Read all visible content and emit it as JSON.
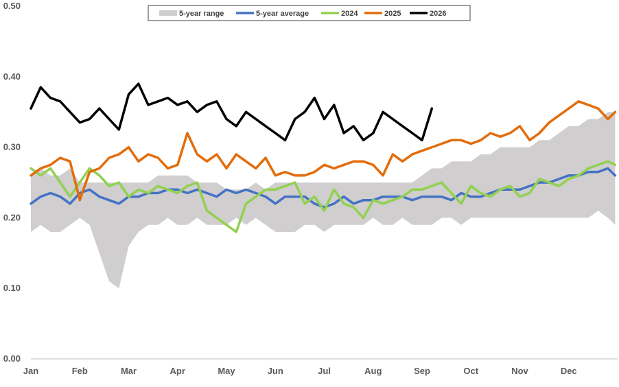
{
  "chart_data": {
    "type": "line",
    "title": "",
    "xlabel": "",
    "ylabel": "",
    "ylim": [
      0,
      0.5
    ],
    "y_ticks": [
      "0.00",
      "0.10",
      "0.20",
      "0.30",
      "0.40",
      "0.50"
    ],
    "x_categories": [
      "Jan",
      "Feb",
      "Mar",
      "Apr",
      "May",
      "Jun",
      "Jul",
      "Aug",
      "Sep",
      "Oct",
      "Nov",
      "Dec"
    ],
    "grid": false,
    "legend_position": "top",
    "legend": [
      {
        "label": "5-year range",
        "color": "#d0cece",
        "kind": "band"
      },
      {
        "label": "5-year average",
        "color": "#4472c4",
        "kind": "line"
      },
      {
        "label": "2024",
        "color": "#92d050",
        "kind": "line"
      },
      {
        "label": "2025",
        "color": "#e36c0a",
        "kind": "line"
      },
      {
        "label": "2026",
        "color": "#000000",
        "kind": "line"
      }
    ],
    "range_band": {
      "name": "5-year range",
      "x": [
        0,
        0.2,
        0.4,
        0.6,
        0.8,
        1.0,
        1.2,
        1.4,
        1.6,
        1.8,
        2.0,
        2.2,
        2.4,
        2.6,
        2.8,
        3.0,
        3.2,
        3.4,
        3.6,
        3.8,
        4.0,
        4.2,
        4.4,
        4.6,
        4.8,
        5.0,
        5.2,
        5.4,
        5.6,
        5.8,
        6.0,
        6.2,
        6.4,
        6.6,
        6.8,
        7.0,
        7.2,
        7.4,
        7.6,
        7.8,
        8.0,
        8.2,
        8.4,
        8.6,
        8.8,
        9.0,
        9.2,
        9.4,
        9.6,
        9.8,
        10.0,
        10.2,
        10.4,
        10.6,
        10.8,
        11.0,
        11.2,
        11.4,
        11.6,
        11.8,
        11.95
      ],
      "low": [
        0.18,
        0.19,
        0.18,
        0.18,
        0.19,
        0.2,
        0.19,
        0.15,
        0.11,
        0.1,
        0.16,
        0.18,
        0.19,
        0.19,
        0.2,
        0.19,
        0.19,
        0.2,
        0.19,
        0.19,
        0.19,
        0.2,
        0.19,
        0.2,
        0.19,
        0.18,
        0.18,
        0.18,
        0.19,
        0.19,
        0.18,
        0.19,
        0.19,
        0.19,
        0.19,
        0.2,
        0.19,
        0.19,
        0.2,
        0.19,
        0.19,
        0.19,
        0.2,
        0.2,
        0.19,
        0.2,
        0.2,
        0.2,
        0.2,
        0.2,
        0.2,
        0.2,
        0.2,
        0.2,
        0.2,
        0.2,
        0.2,
        0.2,
        0.21,
        0.2,
        0.19
      ],
      "high": [
        0.26,
        0.27,
        0.26,
        0.26,
        0.27,
        0.25,
        0.25,
        0.25,
        0.25,
        0.25,
        0.25,
        0.25,
        0.25,
        0.26,
        0.26,
        0.26,
        0.26,
        0.25,
        0.25,
        0.25,
        0.24,
        0.24,
        0.24,
        0.25,
        0.24,
        0.25,
        0.25,
        0.25,
        0.25,
        0.25,
        0.25,
        0.25,
        0.25,
        0.25,
        0.25,
        0.25,
        0.25,
        0.25,
        0.25,
        0.25,
        0.26,
        0.27,
        0.27,
        0.28,
        0.28,
        0.28,
        0.29,
        0.29,
        0.3,
        0.3,
        0.3,
        0.3,
        0.31,
        0.31,
        0.32,
        0.33,
        0.33,
        0.34,
        0.34,
        0.35,
        0.35
      ]
    },
    "series": [
      {
        "name": "5-year average",
        "color": "#4472c4",
        "x": [
          0,
          0.2,
          0.4,
          0.6,
          0.8,
          1.0,
          1.2,
          1.4,
          1.6,
          1.8,
          2.0,
          2.2,
          2.4,
          2.6,
          2.8,
          3.0,
          3.2,
          3.4,
          3.6,
          3.8,
          4.0,
          4.2,
          4.4,
          4.6,
          4.8,
          5.0,
          5.2,
          5.4,
          5.6,
          5.8,
          6.0,
          6.2,
          6.4,
          6.6,
          6.8,
          7.0,
          7.2,
          7.4,
          7.6,
          7.8,
          8.0,
          8.2,
          8.4,
          8.6,
          8.8,
          9.0,
          9.2,
          9.4,
          9.6,
          9.8,
          10.0,
          10.2,
          10.4,
          10.6,
          10.8,
          11.0,
          11.2,
          11.4,
          11.6,
          11.8,
          11.95
        ],
        "values": [
          0.22,
          0.23,
          0.235,
          0.23,
          0.22,
          0.235,
          0.24,
          0.23,
          0.225,
          0.22,
          0.23,
          0.23,
          0.235,
          0.235,
          0.24,
          0.24,
          0.235,
          0.24,
          0.235,
          0.23,
          0.24,
          0.235,
          0.24,
          0.235,
          0.23,
          0.22,
          0.23,
          0.23,
          0.23,
          0.22,
          0.215,
          0.22,
          0.23,
          0.22,
          0.225,
          0.225,
          0.23,
          0.23,
          0.23,
          0.225,
          0.23,
          0.23,
          0.23,
          0.225,
          0.235,
          0.23,
          0.23,
          0.235,
          0.24,
          0.24,
          0.24,
          0.245,
          0.25,
          0.25,
          0.255,
          0.26,
          0.26,
          0.265,
          0.265,
          0.27,
          0.26
        ]
      },
      {
        "name": "2024",
        "color": "#92d050",
        "x": [
          0,
          0.2,
          0.4,
          0.6,
          0.8,
          1.0,
          1.2,
          1.4,
          1.6,
          1.8,
          2.0,
          2.2,
          2.4,
          2.6,
          2.8,
          3.0,
          3.2,
          3.4,
          3.6,
          3.8,
          4.0,
          4.2,
          4.4,
          4.6,
          4.8,
          5.0,
          5.2,
          5.4,
          5.6,
          5.8,
          6.0,
          6.2,
          6.4,
          6.6,
          6.8,
          7.0,
          7.2,
          7.4,
          7.6,
          7.8,
          8.0,
          8.2,
          8.4,
          8.6,
          8.8,
          9.0,
          9.2,
          9.4,
          9.6,
          9.8,
          10.0,
          10.2,
          10.4,
          10.6,
          10.8,
          11.0,
          11.2,
          11.4,
          11.6,
          11.8,
          11.95
        ],
        "values": [
          0.27,
          0.26,
          0.27,
          0.25,
          0.23,
          0.25,
          0.27,
          0.26,
          0.245,
          0.25,
          0.23,
          0.24,
          0.235,
          0.245,
          0.24,
          0.235,
          0.245,
          0.25,
          0.21,
          0.2,
          0.19,
          0.18,
          0.22,
          0.23,
          0.24,
          0.24,
          0.245,
          0.25,
          0.22,
          0.23,
          0.21,
          0.24,
          0.22,
          0.215,
          0.2,
          0.225,
          0.22,
          0.225,
          0.23,
          0.24,
          0.24,
          0.245,
          0.25,
          0.235,
          0.22,
          0.245,
          0.235,
          0.23,
          0.24,
          0.245,
          0.23,
          0.235,
          0.255,
          0.25,
          0.245,
          0.255,
          0.26,
          0.27,
          0.275,
          0.28,
          0.275
        ]
      },
      {
        "name": "2025",
        "color": "#e36c0a",
        "x": [
          0,
          0.2,
          0.4,
          0.6,
          0.8,
          1.0,
          1.2,
          1.4,
          1.6,
          1.8,
          2.0,
          2.2,
          2.4,
          2.6,
          2.8,
          3.0,
          3.2,
          3.4,
          3.6,
          3.8,
          4.0,
          4.2,
          4.4,
          4.6,
          4.8,
          5.0,
          5.2,
          5.4,
          5.6,
          5.8,
          6.0,
          6.2,
          6.4,
          6.6,
          6.8,
          7.0,
          7.2,
          7.4,
          7.6,
          7.8,
          8.0,
          8.2,
          8.4,
          8.6,
          8.8,
          9.0,
          9.2,
          9.4,
          9.6,
          9.8,
          10.0,
          10.2,
          10.4,
          10.6,
          10.8,
          11.0,
          11.2,
          11.4,
          11.6,
          11.8,
          11.95
        ],
        "values": [
          0.26,
          0.27,
          0.275,
          0.285,
          0.28,
          0.225,
          0.265,
          0.27,
          0.285,
          0.29,
          0.3,
          0.28,
          0.29,
          0.285,
          0.27,
          0.275,
          0.32,
          0.29,
          0.28,
          0.29,
          0.27,
          0.29,
          0.28,
          0.27,
          0.285,
          0.26,
          0.265,
          0.26,
          0.26,
          0.265,
          0.275,
          0.27,
          0.275,
          0.28,
          0.28,
          0.275,
          0.26,
          0.29,
          0.28,
          0.29,
          0.295,
          0.3,
          0.305,
          0.31,
          0.31,
          0.305,
          0.31,
          0.32,
          0.315,
          0.32,
          0.33,
          0.31,
          0.32,
          0.335,
          0.345,
          0.355,
          0.365,
          0.36,
          0.355,
          0.34,
          0.35
        ]
      },
      {
        "name": "2026",
        "color": "#000000",
        "x": [
          0,
          0.2,
          0.4,
          0.6,
          0.8,
          1.0,
          1.2,
          1.4,
          1.6,
          1.8,
          2.0,
          2.2,
          2.4,
          2.6,
          2.8,
          3.0,
          3.2,
          3.4,
          3.6,
          3.8,
          4.0,
          4.2,
          4.4,
          4.6,
          4.8,
          5.0,
          5.2,
          5.4,
          5.6,
          5.8,
          6.0,
          6.2,
          6.4,
          6.6,
          6.8,
          7.0,
          7.2,
          7.4,
          7.6,
          7.8,
          8.0,
          8.2
        ],
        "values": [
          0.355,
          0.385,
          0.37,
          0.365,
          0.35,
          0.335,
          0.34,
          0.355,
          0.34,
          0.325,
          0.375,
          0.39,
          0.36,
          0.365,
          0.37,
          0.36,
          0.365,
          0.35,
          0.36,
          0.365,
          0.34,
          0.33,
          0.35,
          0.34,
          0.33,
          0.32,
          0.31,
          0.34,
          0.35,
          0.37,
          0.34,
          0.36,
          0.32,
          0.33,
          0.31,
          0.32,
          0.35,
          0.34,
          0.33,
          0.32,
          0.31,
          0.355
        ]
      }
    ]
  }
}
